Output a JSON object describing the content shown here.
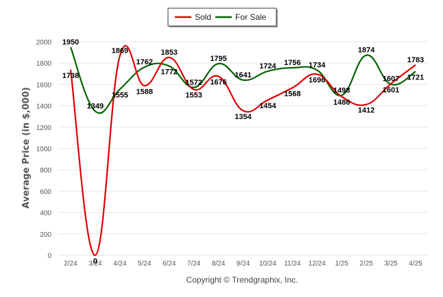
{
  "chart_data": {
    "type": "line",
    "title": "",
    "xlabel": "",
    "ylabel": "Average Price (in $,000)",
    "categories": [
      "2/24",
      "3/24",
      "4/24",
      "5/24",
      "6/24",
      "7/24",
      "8/24",
      "9/24",
      "10/24",
      "11/24",
      "12/24",
      "1/25",
      "2/25",
      "3/25",
      "4/25"
    ],
    "ylim": [
      0,
      2000
    ],
    "yticks": [
      "0",
      "200",
      "400",
      "600",
      "800",
      "1000",
      "1200",
      "1400",
      "1600",
      "1800",
      "2000"
    ],
    "grid": true,
    "legend_position": "top-center",
    "series": [
      {
        "name": "Sold",
        "color": "#e00000",
        "values": [
          1738,
          0,
          1869,
          1588,
          1853,
          1553,
          1676,
          1354,
          1454,
          1568,
          1696,
          1486,
          1412,
          1607,
          1783
        ]
      },
      {
        "name": "For Sale",
        "color": "#006400",
        "values": [
          1950,
          1349,
          1555,
          1762,
          1772,
          1572,
          1795,
          1641,
          1724,
          1756,
          1734,
          1498,
          1874,
          1601,
          1721
        ]
      }
    ]
  },
  "footer": {
    "copyright": "Copyright © Trendgraphix, Inc."
  }
}
